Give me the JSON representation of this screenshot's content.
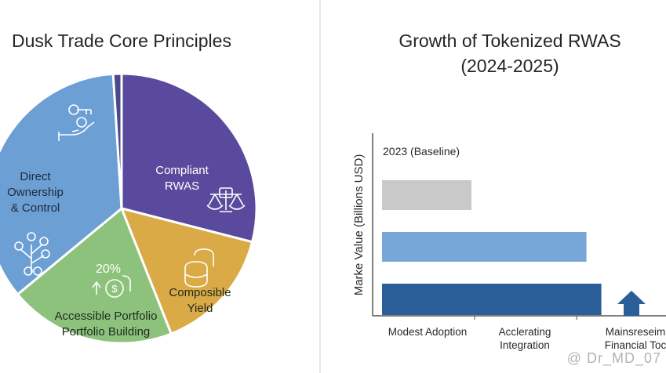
{
  "chart_data": [
    {
      "type": "pie",
      "title": "Dusk Trade Core Principles",
      "slices": [
        {
          "label": "Compliant RWAS",
          "value": 29,
          "color": "#594a9d"
        },
        {
          "label": "Composible Yield",
          "value": 15,
          "color": "#d9aa45"
        },
        {
          "label": "Accessible Portfolio Portfolio Building",
          "value": 20,
          "color": "#8dc27d",
          "badge": "20%"
        },
        {
          "label": "Direct Ownership & Control",
          "value": 35,
          "color": "#6c9fd4"
        },
        {
          "label": "",
          "value": 1,
          "color": "#4a4a8a"
        }
      ]
    },
    {
      "type": "bar",
      "orientation": "horizontal",
      "title": "Growth of Tokenized RWAS",
      "subtitle": "(2024-2025)",
      "ylabel": "Marke Value (Billions USD)",
      "annotation": "2023 (Baseline)",
      "categories": [
        "Modest Adoption",
        "Acclerating Integration",
        "Mainsreseim Financial Toc"
      ],
      "values": [
        4.2,
        9.6,
        10.3
      ],
      "colors": [
        "#c9c9c9",
        "#76a7d8",
        "#2a5f9a"
      ],
      "xlim": [
        0,
        14
      ],
      "arrow_color": "#2a5f9a"
    }
  ],
  "watermark": "@ Dr_MD_07"
}
